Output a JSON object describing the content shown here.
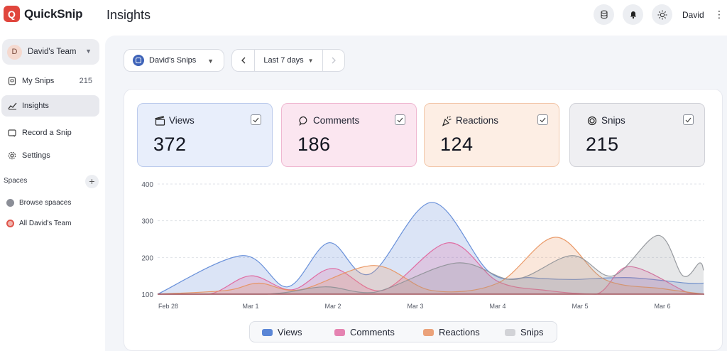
{
  "app": {
    "brand": "QuickSnip",
    "logo_letter": "Q"
  },
  "header": {
    "title": "Insights",
    "user": "David"
  },
  "sidebar": {
    "team": {
      "initial": "D",
      "name": "David's Team"
    },
    "nav": [
      {
        "label": "My Snips",
        "count": "215"
      },
      {
        "label": "Insights"
      },
      {
        "label": "Record a Snip"
      },
      {
        "label": "Settings"
      }
    ],
    "spaces_label": "Spaces",
    "spaces": [
      {
        "label": "Browse spaaces"
      },
      {
        "label": "All David's Team"
      }
    ]
  },
  "filters": {
    "selector": "David's Snips",
    "date_range": "Last 7 days"
  },
  "stats": [
    {
      "label": "Views",
      "value": "372",
      "color": "#5b86d6"
    },
    {
      "label": "Comments",
      "value": "186",
      "color": "#e0609a"
    },
    {
      "label": "Reactions",
      "value": "124",
      "color": "#e8905a"
    },
    {
      "label": "Snips",
      "value": "215",
      "color": "#9a9ca3"
    }
  ],
  "legend": [
    "Views",
    "Comments",
    "Reactions",
    "Snips"
  ],
  "chart_data": {
    "type": "area",
    "x": [
      "Feb 28",
      "Mar 1",
      "Mar 2",
      "Mar 3",
      "Mar 4",
      "Mar 5",
      "Mar 6"
    ],
    "ylim": [
      100,
      400
    ],
    "yticks": [
      100,
      200,
      300,
      400
    ],
    "grid": true,
    "legend_position": "bottom",
    "series": [
      {
        "name": "Views",
        "color": "#5b86d6",
        "points": [
          [
            0,
            100
          ],
          [
            0.9,
            205
          ],
          [
            1.45,
            120
          ],
          [
            1.95,
            240
          ],
          [
            2.45,
            155
          ],
          [
            3.2,
            350
          ],
          [
            3.9,
            160
          ],
          [
            4.4,
            145
          ],
          [
            4.9,
            140
          ],
          [
            5.6,
            145
          ],
          [
            6.3,
            130
          ],
          [
            6.5,
            130
          ]
        ]
      },
      {
        "name": "Comments",
        "color": "#e0609a",
        "points": [
          [
            0,
            100
          ],
          [
            0.5,
            100
          ],
          [
            1.0,
            150
          ],
          [
            1.5,
            112
          ],
          [
            2.0,
            170
          ],
          [
            2.6,
            110
          ],
          [
            3.4,
            240
          ],
          [
            4.0,
            135
          ],
          [
            4.6,
            110
          ],
          [
            5.2,
            100
          ],
          [
            5.6,
            175
          ],
          [
            6.3,
            105
          ],
          [
            6.5,
            100
          ]
        ]
      },
      {
        "name": "Reactions",
        "color": "#e8905a",
        "points": [
          [
            0,
            100
          ],
          [
            0.7,
            110
          ],
          [
            1.1,
            130
          ],
          [
            1.6,
            112
          ],
          [
            2.5,
            178
          ],
          [
            3.2,
            110
          ],
          [
            4.0,
            130
          ],
          [
            4.7,
            255
          ],
          [
            5.3,
            140
          ],
          [
            6.0,
            115
          ],
          [
            6.5,
            100
          ]
        ]
      },
      {
        "name": "Snips",
        "color": "#8d9096",
        "points": [
          [
            0,
            100
          ],
          [
            1.2,
            100
          ],
          [
            1.9,
            120
          ],
          [
            2.5,
            105
          ],
          [
            3.5,
            185
          ],
          [
            4.2,
            140
          ],
          [
            4.9,
            205
          ],
          [
            5.4,
            150
          ],
          [
            5.95,
            260
          ],
          [
            6.25,
            150
          ],
          [
            6.45,
            185
          ],
          [
            6.5,
            165
          ]
        ]
      }
    ]
  }
}
